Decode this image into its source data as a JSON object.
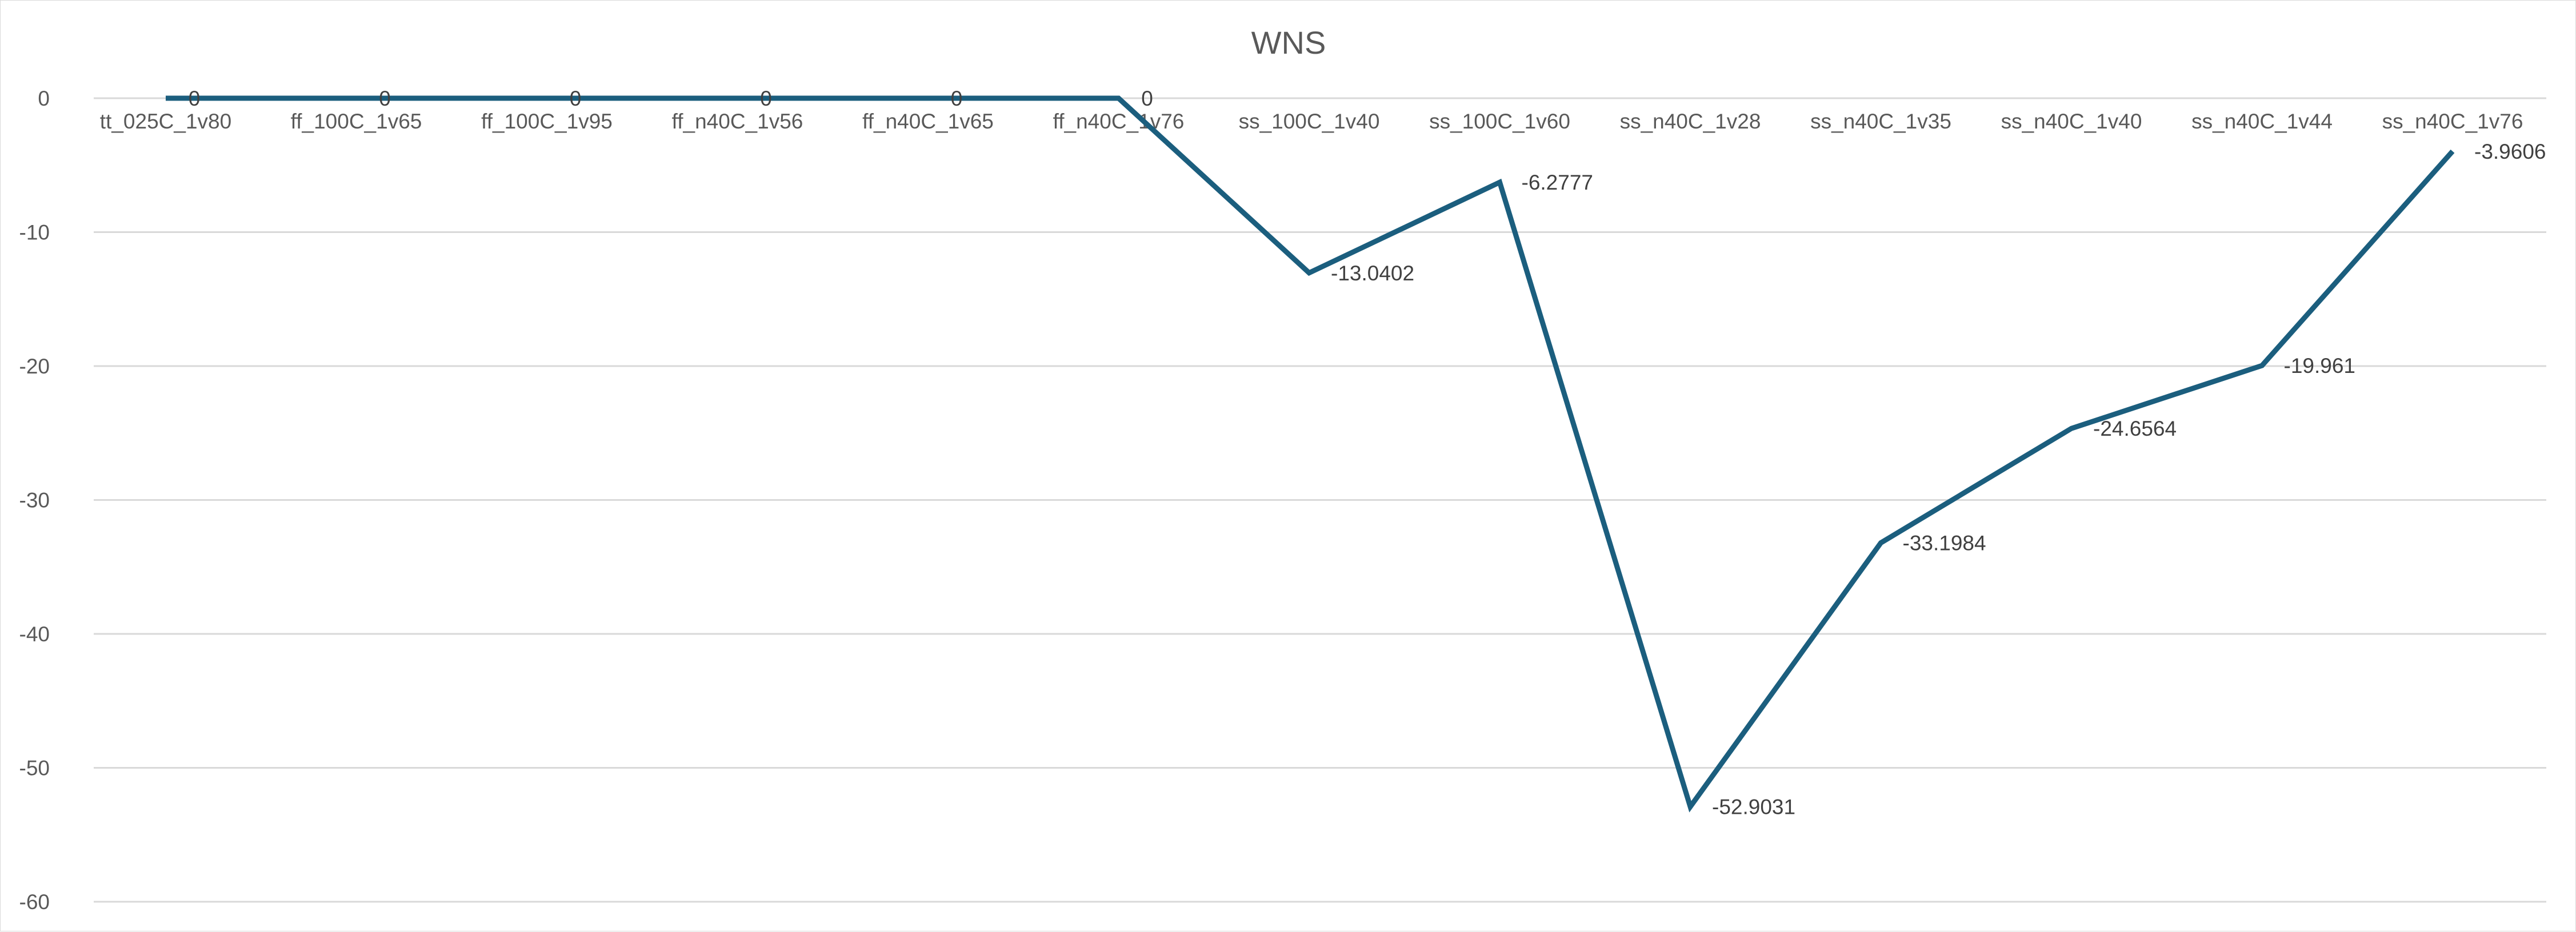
{
  "chart_data": {
    "type": "line",
    "title": "WNS",
    "xlabel": "",
    "ylabel": "",
    "ylim": [
      -60,
      0
    ],
    "y_ticks": [
      0,
      -10,
      -20,
      -30,
      -40,
      -50,
      -60
    ],
    "y_tick_labels": [
      "0",
      "-10",
      "-20",
      "-30",
      "-40",
      "-50",
      "-60"
    ],
    "grid": true,
    "legend": "none",
    "x_axis_labels_position": "top",
    "categories": [
      "tt_025C_1v80",
      "ff_100C_1v65",
      "ff_100C_1v95",
      "ff_n40C_1v56",
      "ff_n40C_1v65",
      "ff_n40C_1v76",
      "ss_100C_1v40",
      "ss_100C_1v60",
      "ss_n40C_1v28",
      "ss_n40C_1v35",
      "ss_n40C_1v40",
      "ss_n40C_1v44",
      "ss_n40C_1v76"
    ],
    "series": [
      {
        "values": [
          0,
          0,
          0,
          0,
          0,
          0,
          -13.0402,
          -6.2777,
          -52.9031,
          -33.1984,
          -24.6564,
          -19.961,
          -3.9606
        ],
        "data_labels": [
          "0",
          "0",
          "0",
          "0",
          "0",
          "0",
          "-13.0402",
          "-6.2777",
          "-52.9031",
          "-33.1984",
          "-24.6564",
          "-19.961",
          "-3.9606"
        ],
        "color": "#1b5e7e"
      }
    ]
  },
  "colors": {
    "line": "#1b5e7e",
    "grid": "#d9d9d9",
    "axis_text": "#595959",
    "data_label_text": "#404040",
    "border": "#d9d9d9",
    "background": "#ffffff"
  }
}
